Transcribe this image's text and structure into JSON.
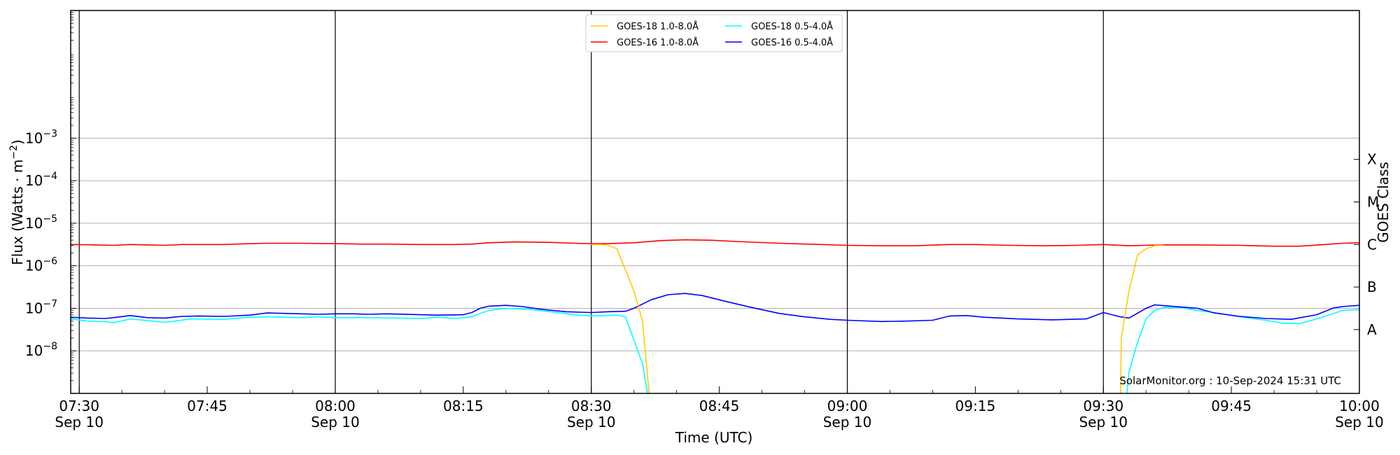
{
  "chart_data": {
    "type": "line",
    "xlabel": "Time (UTC)",
    "ylabel_prefix": "Flux (Watts · m",
    "ylabel_sup": "−2",
    "ylabel_suffix": ")",
    "right_axis_label": "GOES Class",
    "credit": "SolarMonitor.org : 10-Sep-2024 15:31 UTC",
    "x_range_minutes": [
      -1,
      150
    ],
    "y_log_range": [
      -9.0,
      0.0
    ],
    "y_scale": "log",
    "y_ticks": [
      {
        "exp": -8,
        "base": "10",
        "sup": "−8"
      },
      {
        "exp": -7,
        "base": "10",
        "sup": "−7"
      },
      {
        "exp": -6,
        "base": "10",
        "sup": "−6"
      },
      {
        "exp": -5,
        "base": "10",
        "sup": "−5"
      },
      {
        "exp": -4,
        "base": "10",
        "sup": "−4"
      },
      {
        "exp": -3,
        "base": "10",
        "sup": "−3"
      }
    ],
    "x_ticks": [
      {
        "t": 0,
        "line1": "07:30",
        "line2": "Sep 10",
        "day_line": true
      },
      {
        "t": 15,
        "line1": "07:45",
        "line2": "",
        "day_line": false
      },
      {
        "t": 30,
        "line1": "08:00",
        "line2": "Sep 10",
        "day_line": true
      },
      {
        "t": 45,
        "line1": "08:15",
        "line2": "",
        "day_line": false
      },
      {
        "t": 60,
        "line1": "08:30",
        "line2": "Sep 10",
        "day_line": true
      },
      {
        "t": 75,
        "line1": "08:45",
        "line2": "",
        "day_line": false
      },
      {
        "t": 90,
        "line1": "09:00",
        "line2": "Sep 10",
        "day_line": true
      },
      {
        "t": 105,
        "line1": "09:15",
        "line2": "",
        "day_line": false
      },
      {
        "t": 120,
        "line1": "09:30",
        "line2": "Sep 10",
        "day_line": true
      },
      {
        "t": 135,
        "line1": "09:45",
        "line2": "",
        "day_line": false
      },
      {
        "t": 150,
        "line1": "10:00",
        "line2": "Sep 10",
        "day_line": false
      }
    ],
    "goes_classes": [
      {
        "label": "X",
        "exp": -3.5
      },
      {
        "label": "M",
        "exp": -4.5
      },
      {
        "label": "C",
        "exp": -5.5
      },
      {
        "label": "B",
        "exp": -6.5
      },
      {
        "label": "A",
        "exp": -7.5
      }
    ],
    "legend_placement": "top-center",
    "series": [
      {
        "name": "GOES-18 1.0-8.0Å",
        "color": "#ffcc00",
        "points": [
          [
            60,
            -5.5
          ],
          [
            61,
            -5.5
          ],
          [
            62,
            -5.52
          ],
          [
            63,
            -5.6
          ],
          [
            64,
            -6.1
          ],
          [
            65,
            -6.6
          ],
          [
            66,
            -7.3
          ],
          [
            67,
            -9.5
          ],
          null,
          [
            122,
            -9.5
          ],
          [
            122.1,
            -7.7
          ],
          [
            123,
            -6.6
          ],
          [
            124,
            -5.75
          ],
          [
            125,
            -5.6
          ],
          [
            126,
            -5.53
          ],
          [
            127,
            -5.52
          ]
        ]
      },
      {
        "name": "GOES-16 1.0-8.0Å",
        "color": "#ff0000",
        "points": [
          [
            -1,
            -5.5
          ],
          [
            2,
            -5.51
          ],
          [
            4,
            -5.52
          ],
          [
            6,
            -5.5
          ],
          [
            8,
            -5.51
          ],
          [
            10,
            -5.52
          ],
          [
            12,
            -5.5
          ],
          [
            14,
            -5.5
          ],
          [
            17,
            -5.5
          ],
          [
            20,
            -5.48
          ],
          [
            22,
            -5.47
          ],
          [
            26,
            -5.47
          ],
          [
            30,
            -5.48
          ],
          [
            33,
            -5.49
          ],
          [
            36,
            -5.49
          ],
          [
            40,
            -5.5
          ],
          [
            44,
            -5.5
          ],
          [
            46,
            -5.49
          ],
          [
            48,
            -5.46
          ],
          [
            51,
            -5.44
          ],
          [
            55,
            -5.45
          ],
          [
            58,
            -5.47
          ],
          [
            60,
            -5.48
          ],
          [
            62,
            -5.48
          ],
          [
            65,
            -5.46
          ],
          [
            68,
            -5.41
          ],
          [
            71,
            -5.39
          ],
          [
            74,
            -5.4
          ],
          [
            77,
            -5.43
          ],
          [
            82,
            -5.47
          ],
          [
            87,
            -5.5
          ],
          [
            90,
            -5.52
          ],
          [
            94,
            -5.53
          ],
          [
            98,
            -5.53
          ],
          [
            102,
            -5.5
          ],
          [
            105,
            -5.5
          ],
          [
            109,
            -5.52
          ],
          [
            113,
            -5.53
          ],
          [
            117,
            -5.52
          ],
          [
            120,
            -5.5
          ],
          [
            123,
            -5.53
          ],
          [
            127,
            -5.51
          ],
          [
            131,
            -5.51
          ],
          [
            136,
            -5.52
          ],
          [
            140,
            -5.54
          ],
          [
            143,
            -5.54
          ],
          [
            146,
            -5.5
          ],
          [
            148,
            -5.47
          ],
          [
            150,
            -5.46
          ]
        ]
      },
      {
        "name": "GOES-18 0.5-4.0Å",
        "color": "#00ffff",
        "points": [
          [
            -1,
            -7.25
          ],
          [
            1,
            -7.3
          ],
          [
            3,
            -7.31
          ],
          [
            4,
            -7.34
          ],
          [
            6,
            -7.25
          ],
          [
            8,
            -7.29
          ],
          [
            10,
            -7.33
          ],
          [
            12,
            -7.28
          ],
          [
            13,
            -7.25
          ],
          [
            17,
            -7.26
          ],
          [
            20,
            -7.21
          ],
          [
            22,
            -7.2
          ],
          [
            26,
            -7.22
          ],
          [
            28,
            -7.2
          ],
          [
            30,
            -7.22
          ],
          [
            34,
            -7.22
          ],
          [
            38,
            -7.23
          ],
          [
            40,
            -7.24
          ],
          [
            42,
            -7.21
          ],
          [
            44,
            -7.24
          ],
          [
            46,
            -7.2
          ],
          [
            47,
            -7.12
          ],
          [
            48,
            -7.05
          ],
          [
            50,
            -7.0
          ],
          [
            53,
            -7.03
          ],
          [
            56,
            -7.1
          ],
          [
            58,
            -7.15
          ],
          [
            60,
            -7.18
          ],
          [
            63,
            -7.16
          ],
          [
            64,
            -7.2
          ],
          [
            66,
            -8.3
          ],
          [
            67,
            -9.5
          ],
          null,
          [
            122.5,
            -9.5
          ],
          [
            123,
            -8.5
          ],
          [
            124,
            -7.8
          ],
          [
            125,
            -7.25
          ],
          [
            126,
            -7.05
          ],
          [
            127,
            -6.98
          ],
          [
            129,
            -6.98
          ],
          [
            131,
            -7.05
          ],
          [
            133,
            -7.1
          ],
          [
            136,
            -7.2
          ],
          [
            139,
            -7.28
          ],
          [
            141,
            -7.35
          ],
          [
            143,
            -7.36
          ],
          [
            145,
            -7.25
          ],
          [
            147,
            -7.12
          ],
          [
            148,
            -7.05
          ],
          [
            150,
            -7.03
          ]
        ]
      },
      {
        "name": "GOES-16 0.5-4.0Å",
        "color": "#0000ff",
        "points": [
          [
            -1,
            -7.21
          ],
          [
            1,
            -7.23
          ],
          [
            3,
            -7.24
          ],
          [
            4,
            -7.22
          ],
          [
            6,
            -7.17
          ],
          [
            8,
            -7.22
          ],
          [
            10,
            -7.23
          ],
          [
            12,
            -7.19
          ],
          [
            14,
            -7.18
          ],
          [
            17,
            -7.19
          ],
          [
            20,
            -7.16
          ],
          [
            22,
            -7.11
          ],
          [
            26,
            -7.13
          ],
          [
            28,
            -7.14
          ],
          [
            30,
            -7.13
          ],
          [
            32,
            -7.13
          ],
          [
            34,
            -7.14
          ],
          [
            36,
            -7.13
          ],
          [
            40,
            -7.15
          ],
          [
            42,
            -7.16
          ],
          [
            45,
            -7.15
          ],
          [
            46,
            -7.1
          ],
          [
            47,
            -7.0
          ],
          [
            48,
            -6.95
          ],
          [
            50,
            -6.93
          ],
          [
            52,
            -6.96
          ],
          [
            54,
            -7.02
          ],
          [
            57,
            -7.08
          ],
          [
            60,
            -7.1
          ],
          [
            62,
            -7.08
          ],
          [
            64,
            -7.07
          ],
          [
            65,
            -7.0
          ],
          [
            67,
            -6.8
          ],
          [
            69,
            -6.68
          ],
          [
            71,
            -6.65
          ],
          [
            73,
            -6.7
          ],
          [
            76,
            -6.85
          ],
          [
            79,
            -6.99
          ],
          [
            82,
            -7.12
          ],
          [
            85,
            -7.2
          ],
          [
            88,
            -7.26
          ],
          [
            90,
            -7.28
          ],
          [
            94,
            -7.31
          ],
          [
            97,
            -7.3
          ],
          [
            100,
            -7.28
          ],
          [
            102,
            -7.18
          ],
          [
            104,
            -7.17
          ],
          [
            106,
            -7.21
          ],
          [
            110,
            -7.25
          ],
          [
            114,
            -7.27
          ],
          [
            118,
            -7.25
          ],
          [
            120,
            -7.1
          ],
          [
            122,
            -7.2
          ],
          [
            123,
            -7.23
          ],
          [
            125,
            -7.0
          ],
          [
            126,
            -6.92
          ],
          [
            128,
            -6.95
          ],
          [
            131,
            -7.0
          ],
          [
            133,
            -7.11
          ],
          [
            136,
            -7.19
          ],
          [
            139,
            -7.24
          ],
          [
            142,
            -7.26
          ],
          [
            145,
            -7.15
          ],
          [
            147,
            -6.99
          ],
          [
            148,
            -6.96
          ],
          [
            150,
            -6.93
          ]
        ]
      }
    ]
  }
}
